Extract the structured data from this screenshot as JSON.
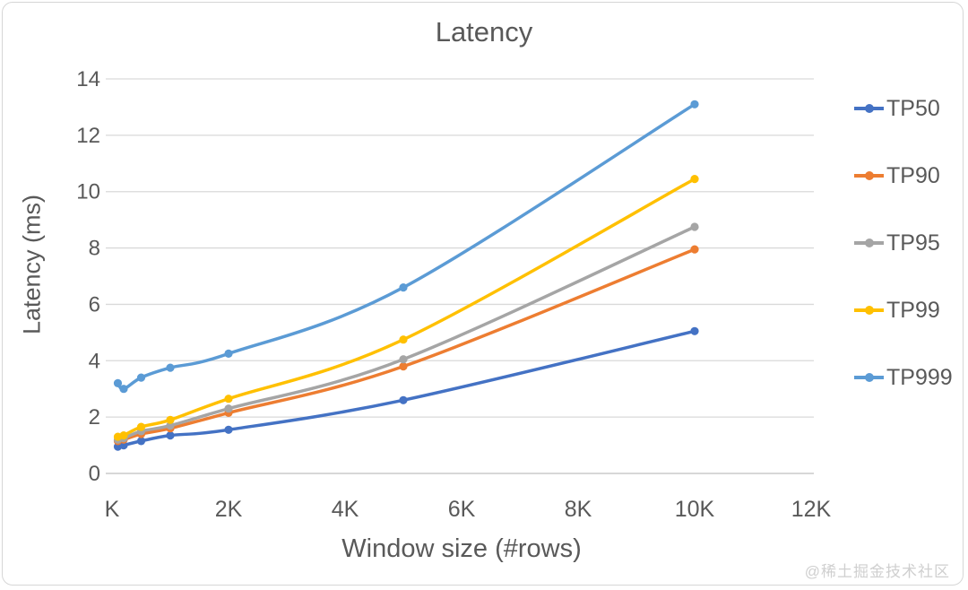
{
  "chart": {
    "title": "Latency",
    "y_axis_title": "Latency (ms)",
    "x_axis_title": "Window size (#rows)",
    "watermark": "@稀土掘金技术社区"
  },
  "chart_data": {
    "type": "line",
    "title": "Latency",
    "xlabel": "Window size (#rows)",
    "ylabel": "Latency (ms)",
    "x": [
      100,
      200,
      500,
      1000,
      2000,
      5000,
      10000
    ],
    "x_axis": {
      "min": 0,
      "max": 12000,
      "tick_values": [
        0,
        2000,
        4000,
        6000,
        8000,
        10000,
        12000
      ],
      "tick_labels": [
        "K",
        "2K",
        "4K",
        "6K",
        "8K",
        "10K",
        "12K"
      ]
    },
    "y_axis": {
      "min": 0,
      "max": 14,
      "tick_values": [
        0,
        2,
        4,
        6,
        8,
        10,
        12,
        14
      ],
      "tick_labels": [
        "0",
        "2",
        "4",
        "6",
        "8",
        "10",
        "12",
        "14"
      ]
    },
    "grid": true,
    "legend_position": "right",
    "line_style": "smooth-with-markers",
    "series": [
      {
        "name": "TP50",
        "color": "#4472C4",
        "values": [
          0.95,
          1.0,
          1.15,
          1.35,
          1.55,
          2.6,
          5.05
        ]
      },
      {
        "name": "TP90",
        "color": "#ED7D31",
        "values": [
          1.15,
          1.2,
          1.4,
          1.6,
          2.15,
          3.8,
          7.95
        ]
      },
      {
        "name": "TP95",
        "color": "#A5A5A5",
        "values": [
          1.2,
          1.25,
          1.5,
          1.7,
          2.3,
          4.05,
          8.75
        ]
      },
      {
        "name": "TP99",
        "color": "#FFC000",
        "values": [
          1.3,
          1.35,
          1.65,
          1.9,
          2.65,
          4.75,
          10.45
        ]
      },
      {
        "name": "TP999",
        "color": "#5B9BD5",
        "values": [
          3.2,
          3.0,
          3.4,
          3.75,
          4.25,
          6.6,
          13.1
        ]
      }
    ],
    "colors": {
      "text": "#595959",
      "gridline": "#D9D9D9",
      "axis_line": "#BFBFBF",
      "background": "#FFFFFF",
      "watermark": "#CFCFCF"
    }
  }
}
